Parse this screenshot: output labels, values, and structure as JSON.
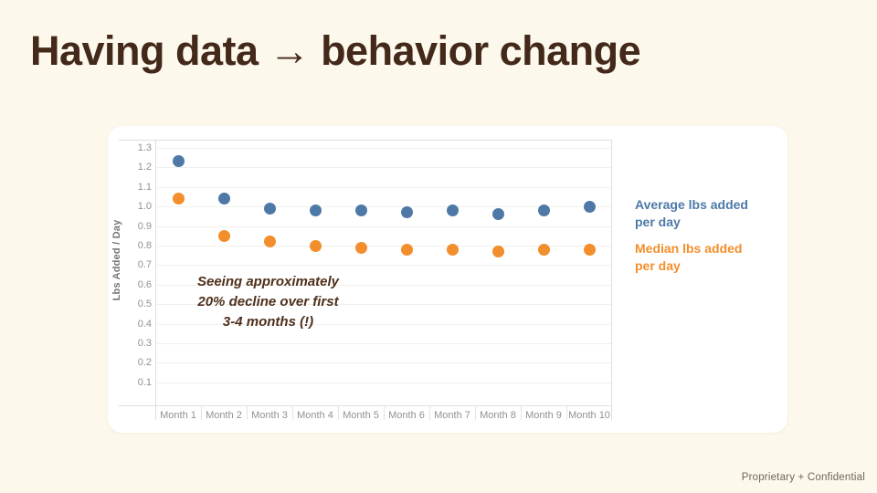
{
  "slide": {
    "title": "Having data → behavior change",
    "footer": "Proprietary + Confidential"
  },
  "chart_data": {
    "type": "scatter",
    "categories": [
      "Month 1",
      "Month 2",
      "Month 3",
      "Month 4",
      "Month 5",
      "Month 6",
      "Month 7",
      "Month 8",
      "Month 9",
      "Month 10"
    ],
    "series": [
      {
        "name": "Average lbs added per day",
        "color": "#4e79a7",
        "values": [
          1.23,
          1.04,
          0.99,
          0.98,
          0.98,
          0.97,
          0.98,
          0.96,
          0.98,
          1.0
        ]
      },
      {
        "name": "Median lbs added per day",
        "color": "#f28e2b",
        "values": [
          1.04,
          0.85,
          0.82,
          0.8,
          0.79,
          0.78,
          0.78,
          0.77,
          0.78,
          0.78
        ]
      }
    ],
    "title": "",
    "xlabel": "",
    "ylabel": "Lbs Added / Day",
    "ylim": [
      0,
      1.35
    ],
    "yticks": [
      1.3,
      1.2,
      1.1,
      1.0,
      0.9,
      0.8,
      0.7,
      0.6,
      0.5,
      0.4,
      0.3,
      0.2,
      0.1
    ],
    "grid": true,
    "legend_position": "right",
    "annotation_lines": [
      "Seeing approximately",
      "20% decline over first",
      "3-4 months (!)"
    ]
  },
  "colors": {
    "background": "#fdf8ec",
    "card": "#ffffff",
    "title_text": "#43291a",
    "annotation_text": "#4f2f1b",
    "average_series": "#4e79a7",
    "median_series": "#f28e2b",
    "axis_text": "#919191"
  }
}
